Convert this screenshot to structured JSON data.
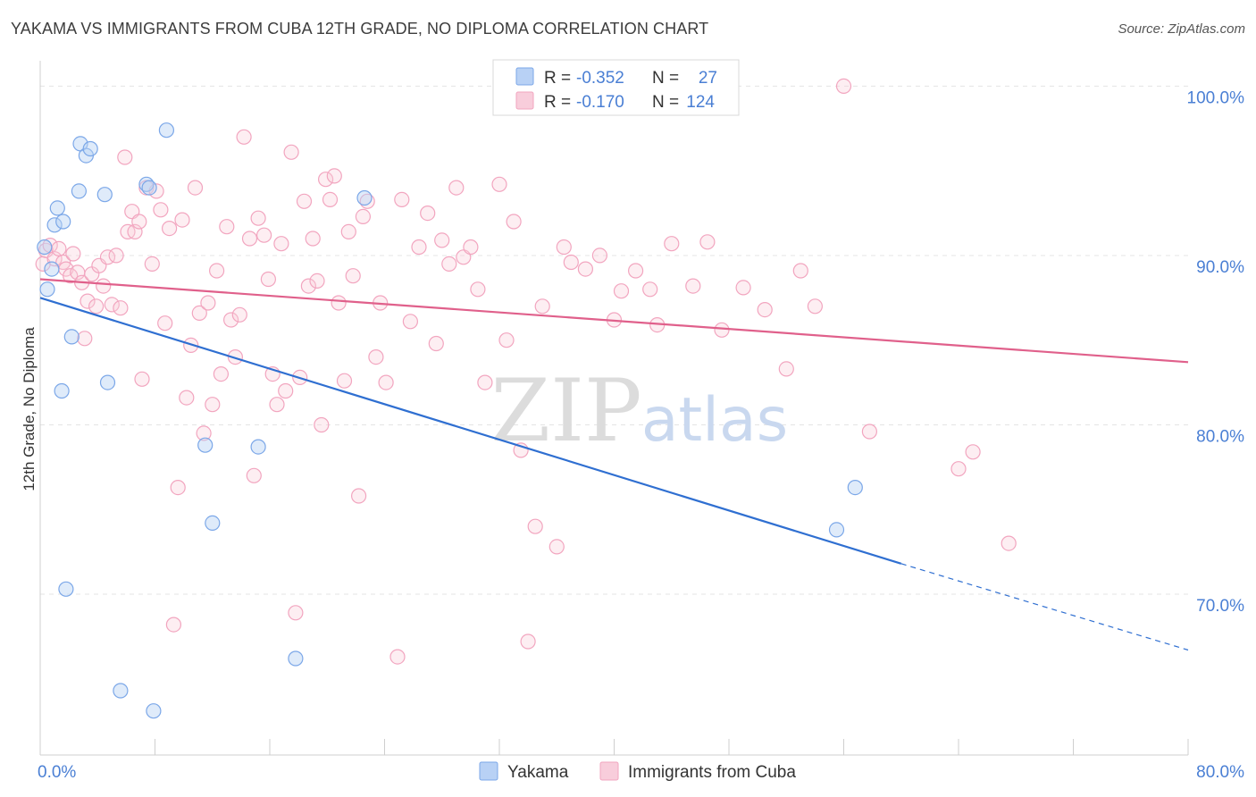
{
  "title": "YAKAMA VS IMMIGRANTS FROM CUBA 12TH GRADE, NO DIPLOMA CORRELATION CHART",
  "source": "Source: ZipAtlas.com",
  "watermark": {
    "zip": "ZIP",
    "atlas": "atlas"
  },
  "chart_data": {
    "type": "scatter",
    "title": "YAKAMA VS IMMIGRANTS FROM CUBA 12TH GRADE, NO DIPLOMA CORRELATION CHART",
    "ylabel": "12th Grade, No Diploma",
    "xlabel": "",
    "xlim": [
      0,
      80
    ],
    "ylim": [
      60.5,
      101.5
    ],
    "x_tick_labels": [
      {
        "value": 0,
        "label": "0.0%"
      },
      {
        "value": 80,
        "label": "80.0%"
      }
    ],
    "y_tick_labels": [
      {
        "value": 100,
        "label": "100.0%"
      },
      {
        "value": 90,
        "label": "90.0%"
      },
      {
        "value": 80,
        "label": "80.0%"
      },
      {
        "value": 70,
        "label": "70.0%"
      }
    ],
    "grid": true,
    "legend_position": "top-center",
    "colors": {
      "yakama": "#7ba7e8",
      "yakama_line": "#2f6fd1",
      "cuba": "#f2a5bf",
      "cuba_line": "#e0608b"
    },
    "series": [
      {
        "name": "Yakama",
        "key": "yakama",
        "stats": {
          "r_label": "R =",
          "r": "-0.352",
          "n_label": "N =",
          "n": "27"
        },
        "trend": {
          "x_start": 0,
          "y_start": 87.5,
          "x_solid_end": 60,
          "y_solid_end": 71.8,
          "x_dash_end": 80,
          "y_dash_end": 66.7
        },
        "points": [
          [
            0.3,
            90.5
          ],
          [
            0.5,
            88.0
          ],
          [
            0.8,
            89.2
          ],
          [
            1.0,
            91.8
          ],
          [
            1.2,
            92.8
          ],
          [
            1.6,
            92.0
          ],
          [
            1.5,
            82.0
          ],
          [
            1.8,
            70.3
          ],
          [
            2.2,
            85.2
          ],
          [
            2.7,
            93.8
          ],
          [
            2.8,
            96.6
          ],
          [
            3.2,
            95.9
          ],
          [
            3.5,
            96.3
          ],
          [
            4.5,
            93.6
          ],
          [
            4.7,
            82.5
          ],
          [
            5.6,
            64.3
          ],
          [
            7.4,
            94.2
          ],
          [
            7.6,
            94.0
          ],
          [
            7.9,
            63.1
          ],
          [
            8.8,
            97.4
          ],
          [
            11.5,
            78.8
          ],
          [
            12.0,
            74.2
          ],
          [
            15.2,
            78.7
          ],
          [
            17.8,
            66.2
          ],
          [
            22.6,
            93.4
          ],
          [
            56.8,
            76.3
          ],
          [
            55.5,
            73.8
          ]
        ]
      },
      {
        "name": "Immigrants from Cuba",
        "key": "cuba",
        "stats": {
          "r_label": "R =",
          "r": "-0.170",
          "n_label": "N =",
          "n": "124"
        },
        "trend": {
          "x_start": 0,
          "y_start": 88.6,
          "x_end": 80,
          "y_end": 83.7
        },
        "points": [
          [
            0.2,
            89.5
          ],
          [
            0.4,
            90.3
          ],
          [
            0.7,
            90.6
          ],
          [
            1.0,
            89.8
          ],
          [
            1.3,
            90.4
          ],
          [
            1.6,
            89.6
          ],
          [
            1.8,
            89.2
          ],
          [
            2.1,
            88.8
          ],
          [
            2.3,
            90.1
          ],
          [
            2.6,
            89.0
          ],
          [
            2.9,
            88.4
          ],
          [
            3.1,
            85.1
          ],
          [
            3.3,
            87.3
          ],
          [
            3.6,
            88.9
          ],
          [
            3.9,
            87.0
          ],
          [
            4.1,
            89.4
          ],
          [
            4.4,
            88.2
          ],
          [
            4.7,
            89.9
          ],
          [
            5.0,
            87.1
          ],
          [
            5.3,
            90.0
          ],
          [
            5.6,
            86.9
          ],
          [
            5.9,
            95.8
          ],
          [
            6.1,
            91.4
          ],
          [
            6.4,
            92.6
          ],
          [
            6.6,
            91.4
          ],
          [
            6.9,
            92.0
          ],
          [
            7.1,
            82.7
          ],
          [
            7.4,
            94.0
          ],
          [
            7.8,
            89.5
          ],
          [
            8.1,
            93.8
          ],
          [
            8.4,
            92.7
          ],
          [
            8.7,
            86.0
          ],
          [
            9.0,
            91.6
          ],
          [
            9.3,
            68.2
          ],
          [
            9.6,
            76.3
          ],
          [
            9.9,
            92.1
          ],
          [
            10.2,
            81.6
          ],
          [
            10.5,
            84.7
          ],
          [
            10.8,
            94.0
          ],
          [
            11.1,
            86.6
          ],
          [
            11.4,
            79.5
          ],
          [
            11.7,
            87.2
          ],
          [
            12.0,
            81.2
          ],
          [
            12.3,
            89.1
          ],
          [
            12.6,
            83.0
          ],
          [
            13.0,
            91.7
          ],
          [
            13.3,
            86.2
          ],
          [
            13.6,
            84.0
          ],
          [
            13.9,
            86.5
          ],
          [
            14.2,
            97.0
          ],
          [
            14.6,
            91.0
          ],
          [
            14.9,
            77.0
          ],
          [
            15.2,
            92.2
          ],
          [
            15.6,
            91.2
          ],
          [
            15.9,
            88.6
          ],
          [
            16.2,
            83.0
          ],
          [
            16.5,
            81.2
          ],
          [
            16.8,
            90.7
          ],
          [
            17.1,
            82.0
          ],
          [
            17.5,
            96.1
          ],
          [
            17.8,
            68.9
          ],
          [
            18.1,
            82.8
          ],
          [
            18.4,
            93.2
          ],
          [
            18.7,
            88.2
          ],
          [
            19.0,
            91.0
          ],
          [
            19.3,
            88.5
          ],
          [
            19.6,
            80.0
          ],
          [
            19.9,
            94.5
          ],
          [
            20.2,
            93.3
          ],
          [
            20.5,
            94.7
          ],
          [
            20.8,
            87.2
          ],
          [
            21.2,
            82.6
          ],
          [
            21.5,
            91.4
          ],
          [
            21.8,
            88.8
          ],
          [
            22.2,
            75.8
          ],
          [
            22.5,
            92.3
          ],
          [
            22.8,
            93.2
          ],
          [
            23.4,
            84.0
          ],
          [
            23.7,
            87.2
          ],
          [
            24.1,
            82.5
          ],
          [
            24.9,
            66.3
          ],
          [
            25.2,
            93.3
          ],
          [
            25.8,
            86.1
          ],
          [
            26.4,
            90.5
          ],
          [
            27.0,
            92.5
          ],
          [
            27.6,
            84.8
          ],
          [
            28.0,
            90.9
          ],
          [
            28.5,
            89.5
          ],
          [
            29.0,
            94.0
          ],
          [
            29.5,
            89.9
          ],
          [
            30.0,
            90.5
          ],
          [
            30.5,
            88.0
          ],
          [
            31.0,
            82.5
          ],
          [
            32.0,
            94.2
          ],
          [
            32.5,
            85.0
          ],
          [
            33.0,
            92.0
          ],
          [
            33.5,
            78.5
          ],
          [
            34.0,
            67.2
          ],
          [
            34.5,
            74.0
          ],
          [
            35.0,
            87.0
          ],
          [
            36.0,
            72.8
          ],
          [
            36.5,
            90.5
          ],
          [
            37.0,
            89.6
          ],
          [
            38.0,
            89.2
          ],
          [
            39.0,
            90.0
          ],
          [
            40.0,
            86.2
          ],
          [
            40.5,
            87.9
          ],
          [
            41.5,
            89.1
          ],
          [
            42.5,
            88.0
          ],
          [
            43.0,
            85.9
          ],
          [
            44.0,
            90.7
          ],
          [
            45.5,
            88.2
          ],
          [
            46.5,
            90.8
          ],
          [
            47.5,
            85.6
          ],
          [
            49.0,
            88.1
          ],
          [
            50.5,
            86.8
          ],
          [
            52.0,
            83.3
          ],
          [
            53.0,
            89.1
          ],
          [
            54.0,
            87.0
          ],
          [
            56.0,
            100.0
          ],
          [
            57.8,
            79.6
          ],
          [
            64.0,
            77.4
          ],
          [
            65.0,
            78.4
          ],
          [
            67.5,
            73.0
          ]
        ]
      }
    ]
  }
}
